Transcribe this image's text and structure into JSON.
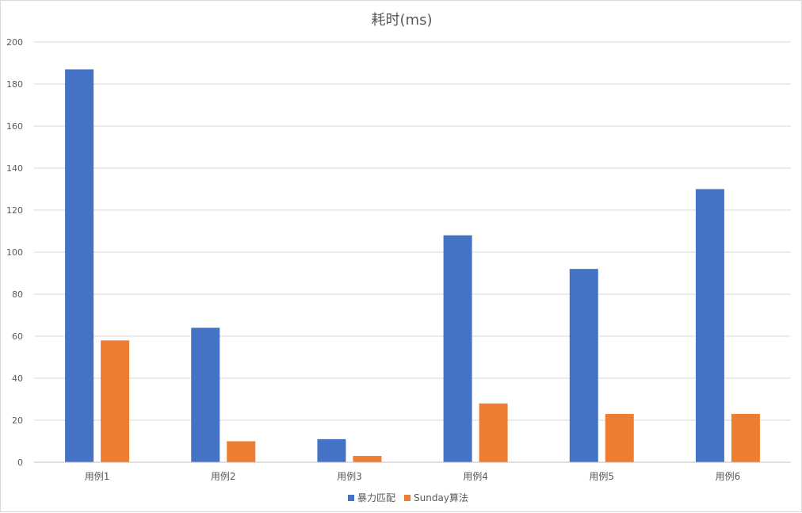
{
  "chart_data": {
    "type": "bar",
    "title": "耗时(ms)",
    "xlabel": "",
    "ylabel": "",
    "categories": [
      "用例1",
      "用例2",
      "用例3",
      "用例4",
      "用例5",
      "用例6"
    ],
    "series": [
      {
        "name": "暴力匹配",
        "color": "#4472C4",
        "values": [
          187,
          64,
          11,
          108,
          92,
          130
        ]
      },
      {
        "name": "Sunday算法",
        "color": "#ED7D31",
        "values": [
          58,
          10,
          3,
          28,
          23,
          23
        ]
      }
    ],
    "ylim": [
      0,
      200
    ],
    "yticks": [
      0,
      20,
      40,
      60,
      80,
      100,
      120,
      140,
      160,
      180,
      200
    ],
    "grid": true,
    "gridColor": "#d9d9d9",
    "legend": "bottom-center"
  }
}
